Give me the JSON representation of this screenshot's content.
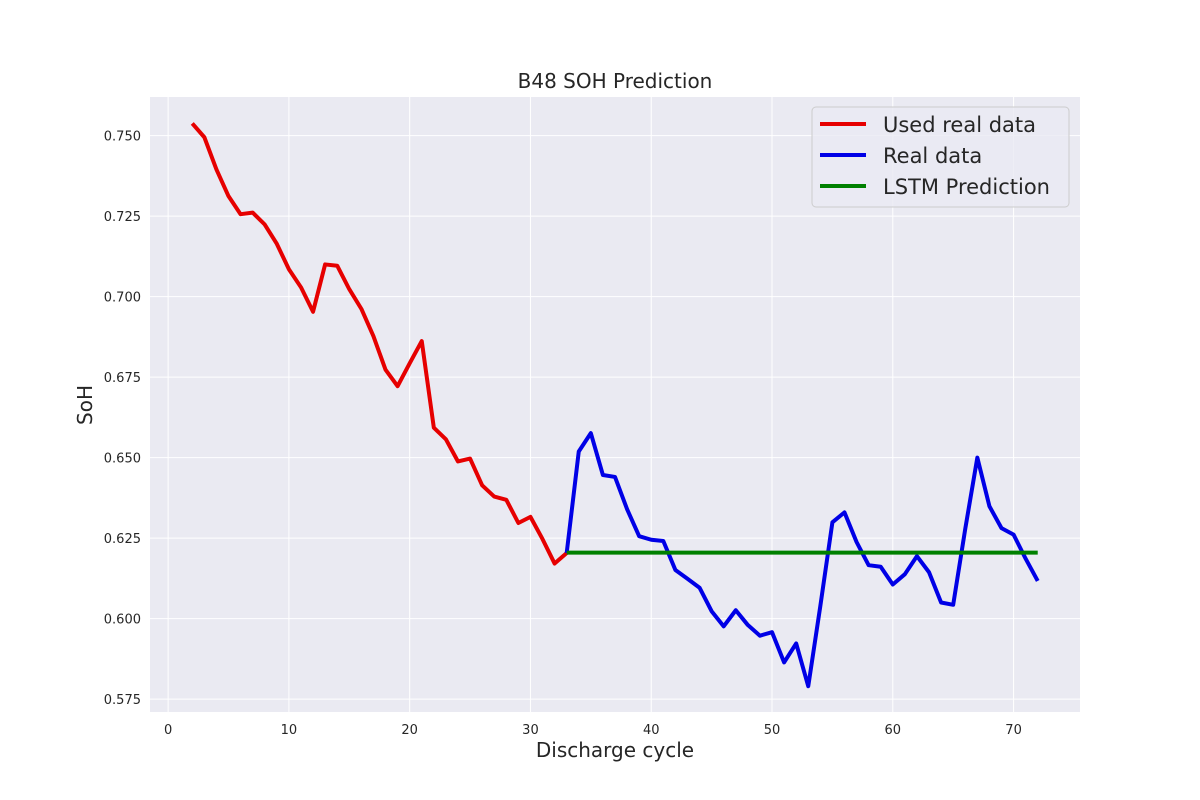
{
  "chart_data": {
    "type": "line",
    "title": "B48 SOH Prediction",
    "xlabel": "Discharge cycle",
    "ylabel": "SoH",
    "xlim": [
      -1.5,
      75.5
    ],
    "ylim": [
      0.571,
      0.762
    ],
    "xticks": [
      0,
      10,
      20,
      30,
      40,
      50,
      60,
      70
    ],
    "yticks": [
      0.575,
      0.6,
      0.625,
      0.65,
      0.675,
      0.7,
      0.725,
      0.75
    ],
    "ytick_labels": [
      "0.575",
      "0.600",
      "0.625",
      "0.650",
      "0.675",
      "0.700",
      "0.725",
      "0.750"
    ],
    "grid": true,
    "legend_position": "top-right",
    "colors": {
      "background": "#eaeaf2",
      "grid": "#ffffff"
    },
    "series": [
      {
        "name": "Used real data",
        "color": "#e60000",
        "x": [
          2,
          3,
          4,
          5,
          6,
          7,
          8,
          9,
          10,
          11,
          12,
          13,
          14,
          15,
          16,
          17,
          18,
          19,
          20,
          21,
          22,
          23,
          24,
          25,
          26,
          27,
          28,
          29,
          30,
          31,
          32,
          33
        ],
        "y": [
          0.7538,
          0.7495,
          0.7395,
          0.7312,
          0.7256,
          0.7261,
          0.7224,
          0.7164,
          0.7085,
          0.7029,
          0.6953,
          0.71,
          0.7096,
          0.7023,
          0.6962,
          0.6877,
          0.6773,
          0.6722,
          0.6793,
          0.6862,
          0.6593,
          0.6557,
          0.6488,
          0.6497,
          0.6414,
          0.6379,
          0.6369,
          0.6297,
          0.6316,
          0.6247,
          0.6171,
          0.6204
        ]
      },
      {
        "name": "Real data",
        "color": "#0000e6",
        "x": [
          33,
          34,
          35,
          36,
          37,
          38,
          39,
          40,
          41,
          42,
          43,
          44,
          45,
          46,
          47,
          48,
          49,
          50,
          51,
          52,
          53,
          54,
          55,
          56,
          57,
          58,
          59,
          60,
          61,
          62,
          63,
          64,
          65,
          66,
          67,
          68,
          69,
          70,
          71,
          72
        ],
        "y": [
          0.6204,
          0.6519,
          0.6576,
          0.6446,
          0.644,
          0.634,
          0.6256,
          0.6245,
          0.6241,
          0.6151,
          0.6124,
          0.6096,
          0.6023,
          0.5976,
          0.6026,
          0.598,
          0.5947,
          0.5958,
          0.5864,
          0.5923,
          0.579,
          0.6039,
          0.6299,
          0.633,
          0.6238,
          0.6166,
          0.6161,
          0.6106,
          0.6138,
          0.6194,
          0.6144,
          0.605,
          0.6043,
          0.6279,
          0.65,
          0.6349,
          0.6281,
          0.6261,
          0.6186,
          0.6117
        ]
      },
      {
        "name": "LSTM Prediction",
        "color": "#008000",
        "x": [
          33,
          72
        ],
        "y": [
          0.6205,
          0.6205
        ]
      }
    ]
  }
}
